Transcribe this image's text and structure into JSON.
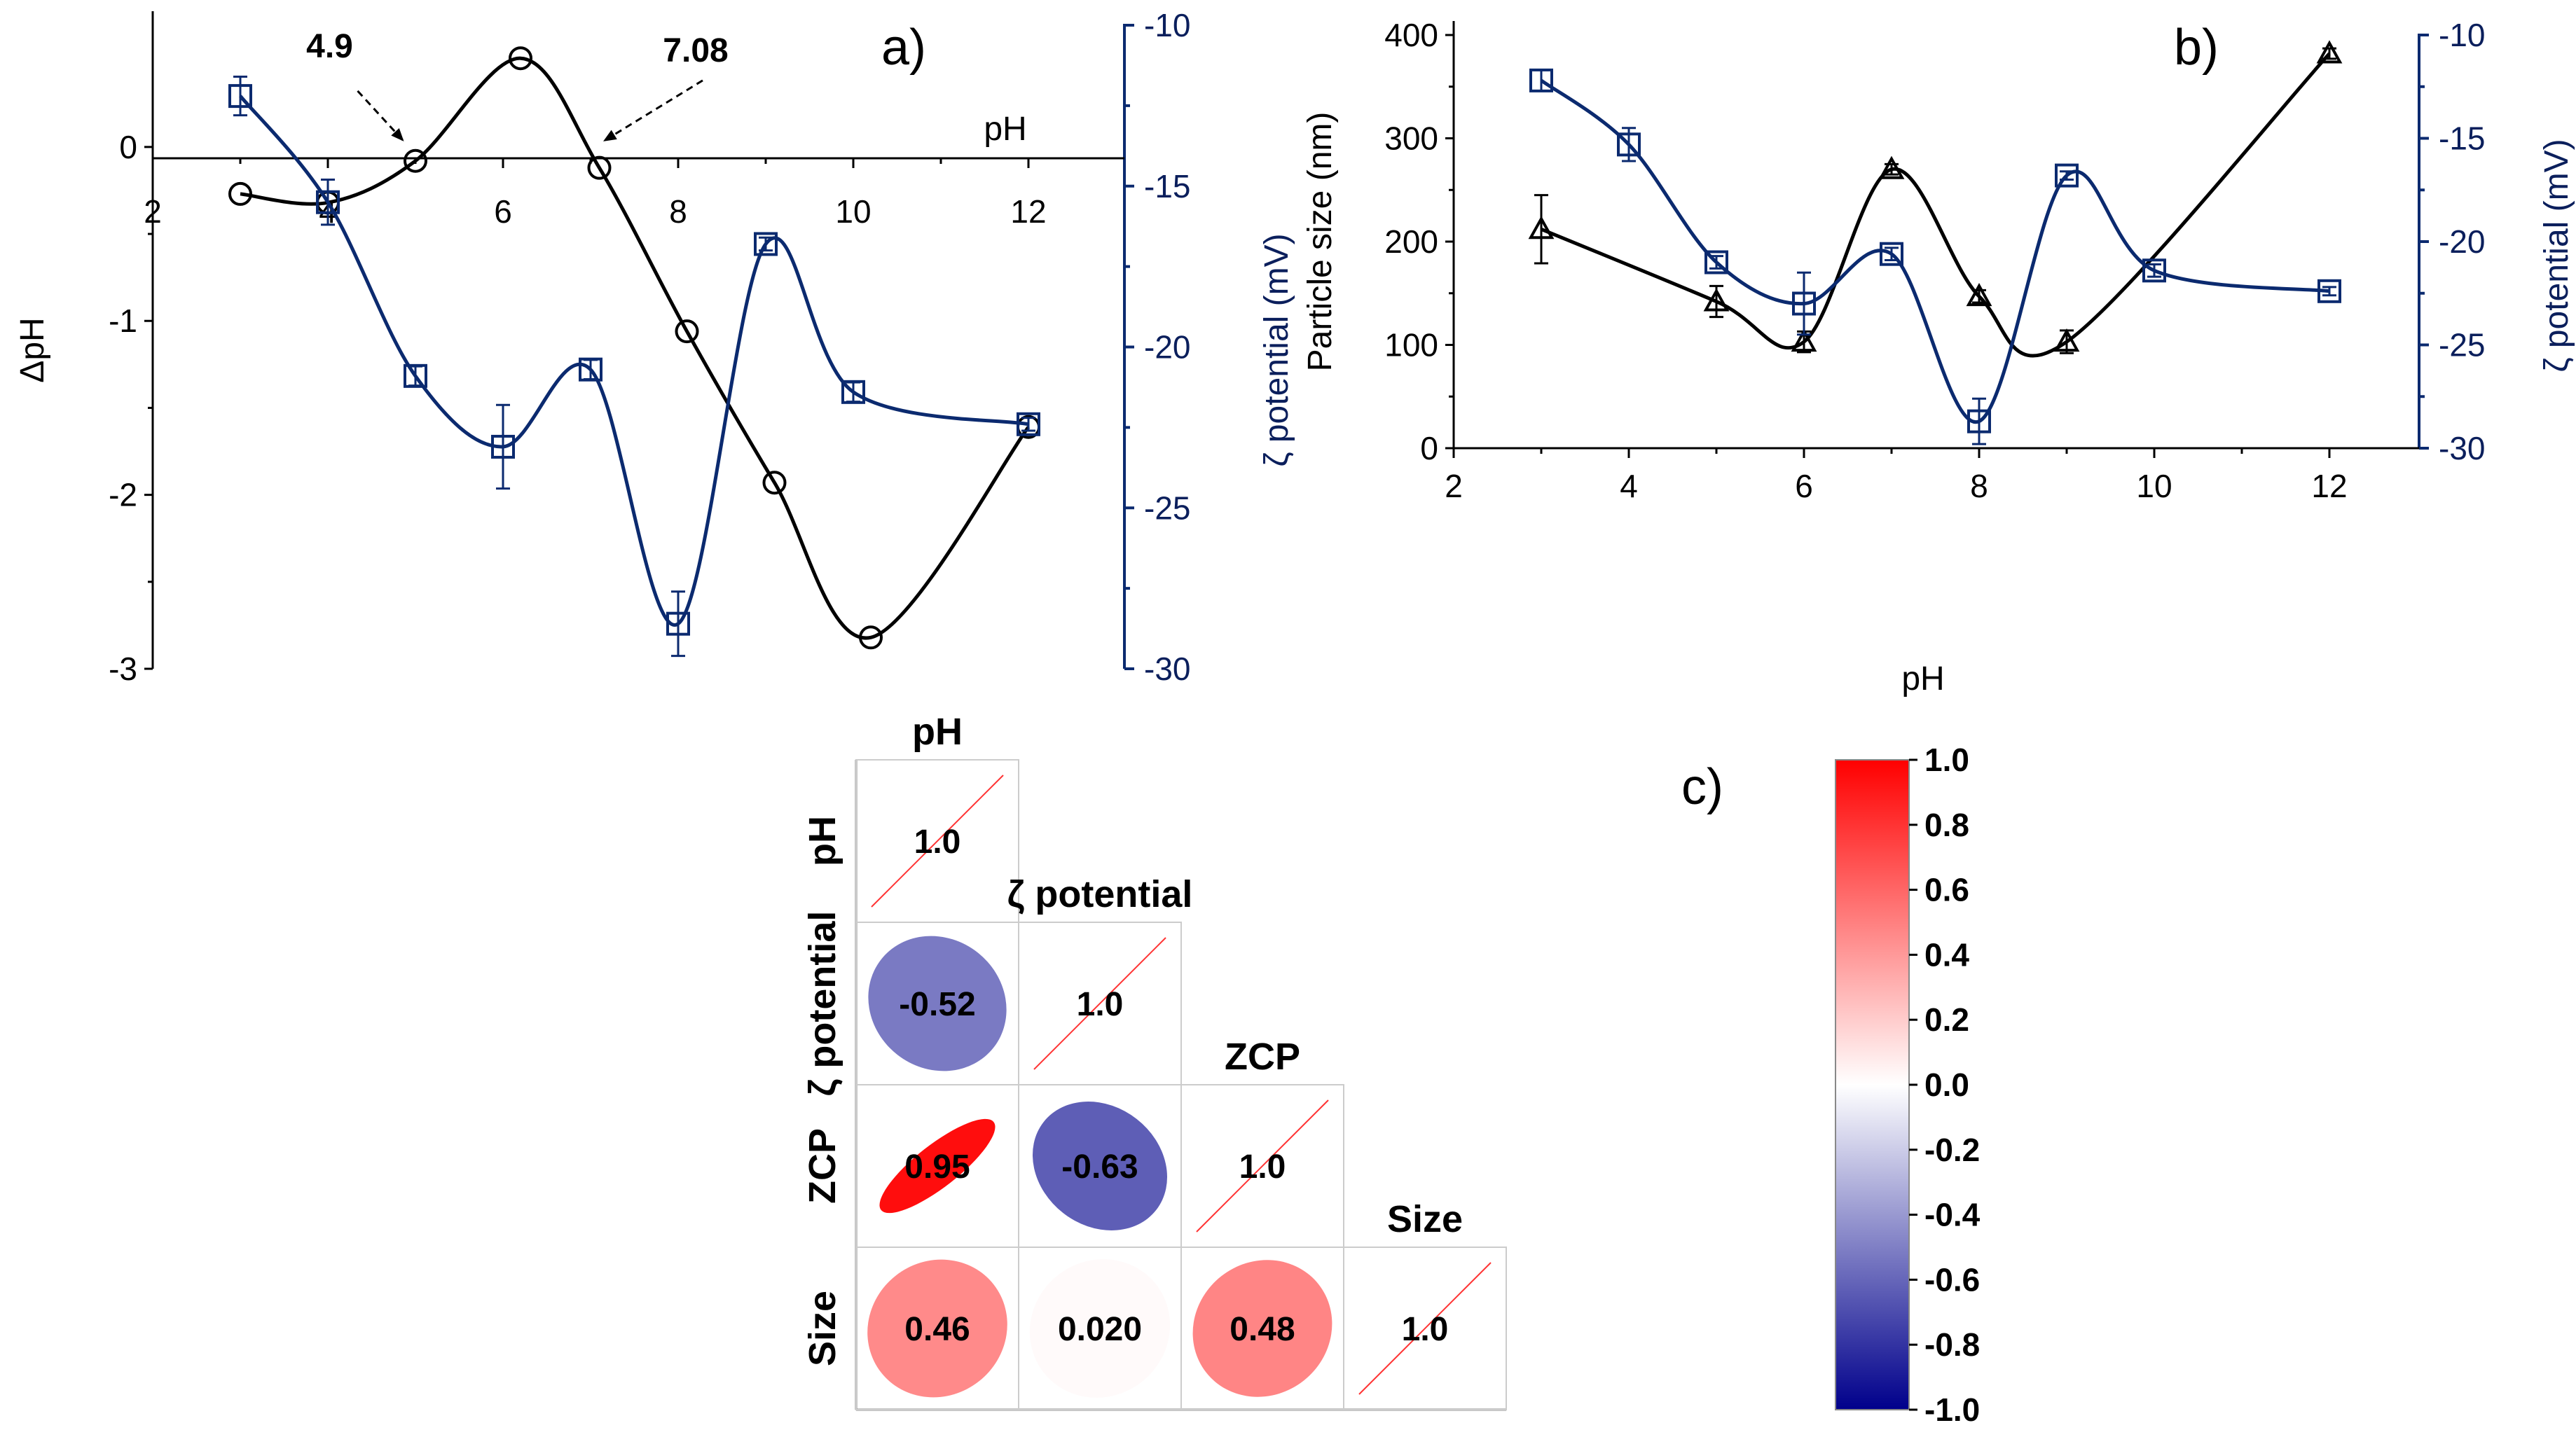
{
  "chart_data": [
    {
      "id": "a",
      "type": "line",
      "panel_label": "a)",
      "xlabel": "pH",
      "ylabel": "ΔpH",
      "y2label": "ζ potential (mV)",
      "xlim": [
        2,
        13
      ],
      "ylim": [
        -3,
        0.7
      ],
      "y2lim": [
        -30,
        -10
      ],
      "xticks": [
        "2",
        "4",
        "6",
        "8",
        "10",
        "12"
      ],
      "yticks": [
        "-3",
        "-2",
        "-1",
        "0"
      ],
      "y2ticks": [
        "-30",
        "-25",
        "-20",
        "-15",
        "-10"
      ],
      "annotations": [
        {
          "text": "4.9",
          "x": 4.9
        },
        {
          "text": "7.08",
          "x": 7.08
        }
      ],
      "series": [
        {
          "name": "ΔpH",
          "axis": "left",
          "color": "#000000",
          "marker": "circle",
          "x": [
            3,
            4,
            5,
            6.2,
            7.1,
            8.1,
            9.1,
            10.2,
            12
          ],
          "y": [
            -0.27,
            -0.32,
            -0.08,
            0.51,
            -0.12,
            -1.06,
            -1.93,
            -2.82,
            -1.61
          ]
        },
        {
          "name": "ζ potential",
          "axis": "right",
          "color": "#0b2a6f",
          "marker": "square",
          "x": [
            3,
            4,
            5,
            6,
            7,
            8,
            9,
            10,
            12
          ],
          "y": [
            -12.2,
            -15.5,
            -20.9,
            -23.1,
            -20.7,
            -28.6,
            -16.8,
            -21.4,
            -22.4
          ],
          "err": [
            0.6,
            0.7,
            0.3,
            1.3,
            0.3,
            1.0,
            0.2,
            0.3,
            0.2
          ]
        }
      ]
    },
    {
      "id": "b",
      "type": "line",
      "panel_label": "b)",
      "xlabel": "pH",
      "ylabel": "Particle size (nm)",
      "y2label": "ζ potential (mV)",
      "xlim": [
        2,
        13
      ],
      "ylim": [
        0,
        400
      ],
      "y2lim": [
        -30,
        -10
      ],
      "xticks": [
        "2",
        "4",
        "6",
        "8",
        "10",
        "12"
      ],
      "yticks": [
        "0",
        "100",
        "200",
        "300",
        "400"
      ],
      "y2ticks": [
        "-30",
        "-25",
        "-20",
        "-15",
        "-10"
      ],
      "series": [
        {
          "name": "Particle size",
          "axis": "left",
          "color": "#000000",
          "marker": "triangle",
          "x": [
            3,
            5,
            6,
            7,
            8,
            9,
            12
          ],
          "y": [
            212,
            142,
            103,
            270,
            147,
            103,
            382
          ],
          "err": [
            33,
            15,
            10,
            5,
            6,
            11,
            5
          ]
        },
        {
          "name": "ζ potential",
          "axis": "right",
          "color": "#0b2a6f",
          "marker": "square",
          "x": [
            3,
            4,
            5,
            6,
            7,
            8,
            9,
            10,
            12
          ],
          "y": [
            -12.2,
            -15.3,
            -21.0,
            -23.0,
            -20.6,
            -28.7,
            -16.8,
            -21.4,
            -22.4
          ],
          "err": [
            0.5,
            0.8,
            0.3,
            1.5,
            0.3,
            1.1,
            0.2,
            0.3,
            0.2
          ]
        }
      ]
    },
    {
      "id": "c",
      "type": "heatmap",
      "panel_label": "c)",
      "variables": [
        "pH",
        "ζ potential",
        "ZCP",
        "Size"
      ],
      "cells": [
        {
          "row": 0,
          "col": 0,
          "value": 1.0,
          "label": "1.0"
        },
        {
          "row": 1,
          "col": 0,
          "value": -0.52,
          "label": "-0.52"
        },
        {
          "row": 1,
          "col": 1,
          "value": 1.0,
          "label": "1.0"
        },
        {
          "row": 2,
          "col": 0,
          "value": 0.95,
          "label": "0.95"
        },
        {
          "row": 2,
          "col": 1,
          "value": -0.63,
          "label": "-0.63"
        },
        {
          "row": 2,
          "col": 2,
          "value": 1.0,
          "label": "1.0"
        },
        {
          "row": 3,
          "col": 0,
          "value": 0.46,
          "label": "0.46"
        },
        {
          "row": 3,
          "col": 1,
          "value": 0.02,
          "label": "0.020"
        },
        {
          "row": 3,
          "col": 2,
          "value": 0.48,
          "label": "0.48"
        },
        {
          "row": 3,
          "col": 3,
          "value": 1.0,
          "label": "1.0"
        }
      ],
      "colorbar": {
        "range": [
          -1,
          1
        ],
        "ticks": [
          "1.0",
          "0.8",
          "0.6",
          "0.4",
          "0.2",
          "0.0",
          "-0.2",
          "-0.4",
          "-0.6",
          "-0.8",
          "-1.0"
        ],
        "colors": {
          "positive": "#ff0000",
          "neutral": "#ffffff",
          "negative": "#00008b"
        }
      }
    }
  ]
}
